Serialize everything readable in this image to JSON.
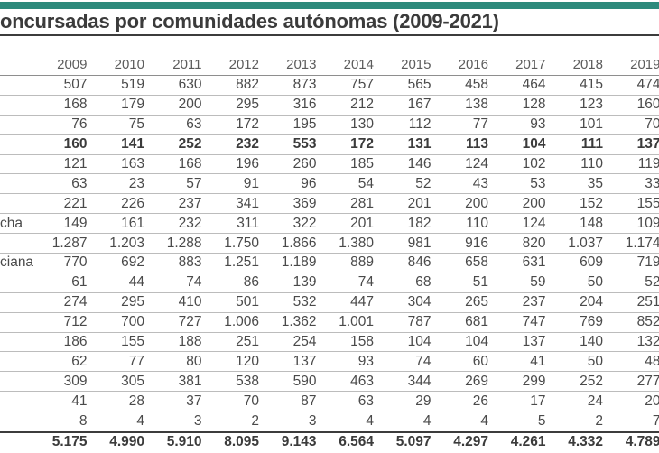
{
  "accent_color": "#2e8a7c",
  "title": "oncursadas por comunidades autónomas (2009-2021)",
  "chart_data": {
    "type": "table",
    "title": "oncursadas por comunidades autónomas (2009-2021)",
    "columns": [
      "2009",
      "2010",
      "2011",
      "2012",
      "2013",
      "2014",
      "2015",
      "2016",
      "2017",
      "2018",
      "2019"
    ],
    "rows": [
      {
        "label": "",
        "bold": false,
        "values": [
          "507",
          "519",
          "630",
          "882",
          "873",
          "757",
          "565",
          "458",
          "464",
          "415",
          "474"
        ]
      },
      {
        "label": "",
        "bold": false,
        "values": [
          "168",
          "179",
          "200",
          "295",
          "316",
          "212",
          "167",
          "138",
          "128",
          "123",
          "160"
        ]
      },
      {
        "label": "",
        "bold": false,
        "values": [
          "76",
          "75",
          "63",
          "172",
          "195",
          "130",
          "112",
          "77",
          "93",
          "101",
          "70"
        ]
      },
      {
        "label": "",
        "bold": true,
        "values": [
          "160",
          "141",
          "252",
          "232",
          "553",
          "172",
          "131",
          "113",
          "104",
          "111",
          "137"
        ]
      },
      {
        "label": "",
        "bold": false,
        "values": [
          "121",
          "163",
          "168",
          "196",
          "260",
          "185",
          "146",
          "124",
          "102",
          "110",
          "119"
        ]
      },
      {
        "label": "",
        "bold": false,
        "values": [
          "63",
          "23",
          "57",
          "91",
          "96",
          "54",
          "52",
          "43",
          "53",
          "35",
          "33"
        ]
      },
      {
        "label": "",
        "bold": false,
        "values": [
          "221",
          "226",
          "237",
          "341",
          "369",
          "281",
          "201",
          "200",
          "200",
          "152",
          "155"
        ]
      },
      {
        "label": "cha",
        "bold": false,
        "values": [
          "149",
          "161",
          "232",
          "311",
          "322",
          "201",
          "182",
          "110",
          "124",
          "148",
          "109"
        ]
      },
      {
        "label": "",
        "bold": false,
        "values": [
          "1.287",
          "1.203",
          "1.288",
          "1.750",
          "1.866",
          "1.380",
          "981",
          "916",
          "820",
          "1.037",
          "1.174"
        ]
      },
      {
        "label": "ciana",
        "bold": false,
        "values": [
          "770",
          "692",
          "883",
          "1.251",
          "1.189",
          "889",
          "846",
          "658",
          "631",
          "609",
          "719"
        ]
      },
      {
        "label": "",
        "bold": false,
        "values": [
          "61",
          "44",
          "74",
          "86",
          "139",
          "74",
          "68",
          "51",
          "59",
          "50",
          "52"
        ]
      },
      {
        "label": "",
        "bold": false,
        "values": [
          "274",
          "295",
          "410",
          "501",
          "532",
          "447",
          "304",
          "265",
          "237",
          "204",
          "251"
        ]
      },
      {
        "label": "",
        "bold": false,
        "values": [
          "712",
          "700",
          "727",
          "1.006",
          "1.362",
          "1.001",
          "787",
          "681",
          "747",
          "769",
          "852"
        ]
      },
      {
        "label": "",
        "bold": false,
        "values": [
          "186",
          "155",
          "188",
          "251",
          "254",
          "158",
          "104",
          "104",
          "137",
          "140",
          "132"
        ]
      },
      {
        "label": "",
        "bold": false,
        "values": [
          "62",
          "77",
          "80",
          "120",
          "137",
          "93",
          "74",
          "60",
          "41",
          "50",
          "48"
        ]
      },
      {
        "label": "",
        "bold": false,
        "values": [
          "309",
          "305",
          "381",
          "538",
          "590",
          "463",
          "344",
          "269",
          "299",
          "252",
          "277"
        ]
      },
      {
        "label": "",
        "bold": false,
        "values": [
          "41",
          "28",
          "37",
          "70",
          "87",
          "63",
          "29",
          "26",
          "17",
          "24",
          "20"
        ]
      },
      {
        "label": "",
        "bold": false,
        "values": [
          "8",
          "4",
          "3",
          "2",
          "3",
          "4",
          "4",
          "4",
          "5",
          "2",
          "7"
        ]
      },
      {
        "label": "",
        "bold": true,
        "values": [
          "5.175",
          "4.990",
          "5.910",
          "8.095",
          "9.143",
          "6.564",
          "5.097",
          "4.297",
          "4.261",
          "4.332",
          "4.789"
        ]
      }
    ]
  }
}
